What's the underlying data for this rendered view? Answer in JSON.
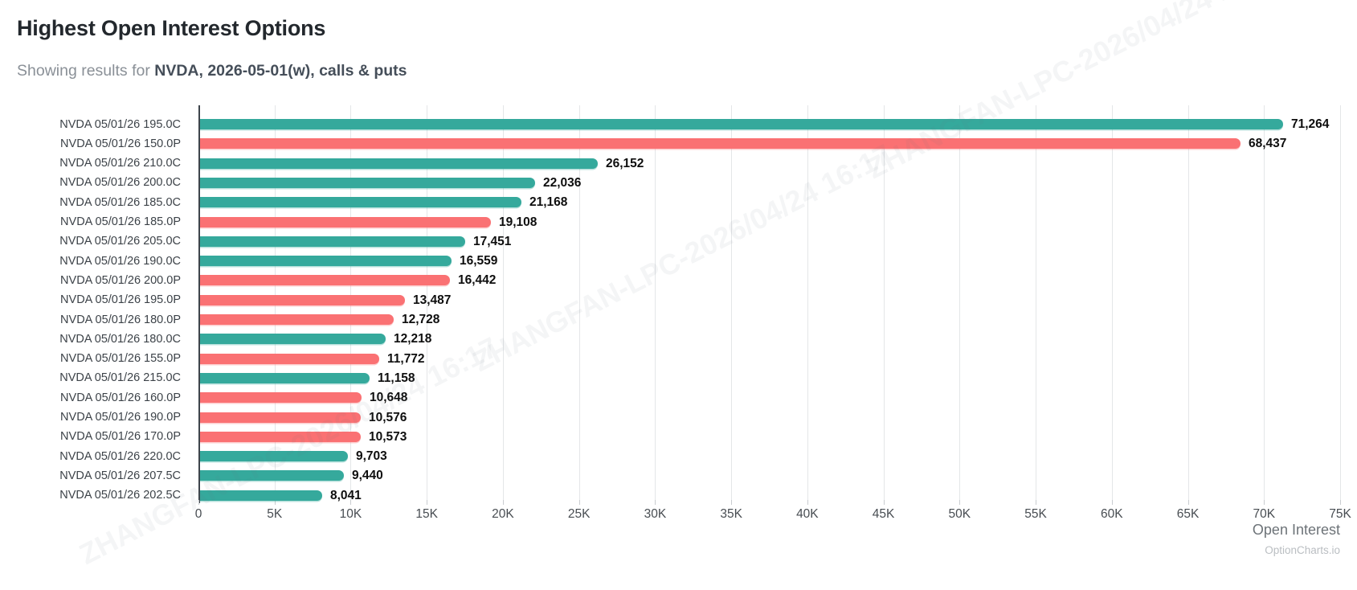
{
  "header": {
    "title": "Highest Open Interest Options",
    "subtitle_prefix": "Showing results for ",
    "subtitle_strong": "NVDA, 2026-05-01(w), calls & puts"
  },
  "footer": {
    "axis_title": "Open Interest",
    "brand": "OptionCharts.io"
  },
  "watermark_text": "ZHANGFAN-LPC-2026/04/24 16:17",
  "chart_data": {
    "type": "bar",
    "orientation": "horizontal",
    "title": "Highest Open Interest Options",
    "xlabel": "Open Interest",
    "ylabel": "",
    "xlim": [
      0,
      75000
    ],
    "grid": "vertical",
    "legend_position": "none",
    "x_tick_values": [
      0,
      5000,
      10000,
      15000,
      20000,
      25000,
      30000,
      35000,
      40000,
      45000,
      50000,
      55000,
      60000,
      65000,
      70000,
      75000
    ],
    "x_tick_labels": [
      "0",
      "5K",
      "10K",
      "15K",
      "20K",
      "25K",
      "30K",
      "35K",
      "40K",
      "45K",
      "50K",
      "55K",
      "60K",
      "65K",
      "70K",
      "75K"
    ],
    "colors": {
      "call": "#35a99c",
      "put": "#fa7173"
    },
    "bars": [
      {
        "label": "NVDA 05/01/26 195.0C",
        "value": 71264,
        "display": "71,264",
        "type": "call"
      },
      {
        "label": "NVDA 05/01/26 150.0P",
        "value": 68437,
        "display": "68,437",
        "type": "put"
      },
      {
        "label": "NVDA 05/01/26 210.0C",
        "value": 26152,
        "display": "26,152",
        "type": "call"
      },
      {
        "label": "NVDA 05/01/26 200.0C",
        "value": 22036,
        "display": "22,036",
        "type": "call"
      },
      {
        "label": "NVDA 05/01/26 185.0C",
        "value": 21168,
        "display": "21,168",
        "type": "call"
      },
      {
        "label": "NVDA 05/01/26 185.0P",
        "value": 19108,
        "display": "19,108",
        "type": "put"
      },
      {
        "label": "NVDA 05/01/26 205.0C",
        "value": 17451,
        "display": "17,451",
        "type": "call"
      },
      {
        "label": "NVDA 05/01/26 190.0C",
        "value": 16559,
        "display": "16,559",
        "type": "call"
      },
      {
        "label": "NVDA 05/01/26 200.0P",
        "value": 16442,
        "display": "16,442",
        "type": "put"
      },
      {
        "label": "NVDA 05/01/26 195.0P",
        "value": 13487,
        "display": "13,487",
        "type": "put"
      },
      {
        "label": "NVDA 05/01/26 180.0P",
        "value": 12728,
        "display": "12,728",
        "type": "put"
      },
      {
        "label": "NVDA 05/01/26 180.0C",
        "value": 12218,
        "display": "12,218",
        "type": "call"
      },
      {
        "label": "NVDA 05/01/26 155.0P",
        "value": 11772,
        "display": "11,772",
        "type": "put"
      },
      {
        "label": "NVDA 05/01/26 215.0C",
        "value": 11158,
        "display": "11,158",
        "type": "call"
      },
      {
        "label": "NVDA 05/01/26 160.0P",
        "value": 10648,
        "display": "10,648",
        "type": "put"
      },
      {
        "label": "NVDA 05/01/26 190.0P",
        "value": 10576,
        "display": "10,576",
        "type": "put"
      },
      {
        "label": "NVDA 05/01/26 170.0P",
        "value": 10573,
        "display": "10,573",
        "type": "put"
      },
      {
        "label": "NVDA 05/01/26 220.0C",
        "value": 9703,
        "display": "9,703",
        "type": "call"
      },
      {
        "label": "NVDA 05/01/26 207.5C",
        "value": 9440,
        "display": "9,440",
        "type": "call"
      },
      {
        "label": "NVDA 05/01/26 202.5C",
        "value": 8041,
        "display": "8,041",
        "type": "call"
      }
    ]
  }
}
